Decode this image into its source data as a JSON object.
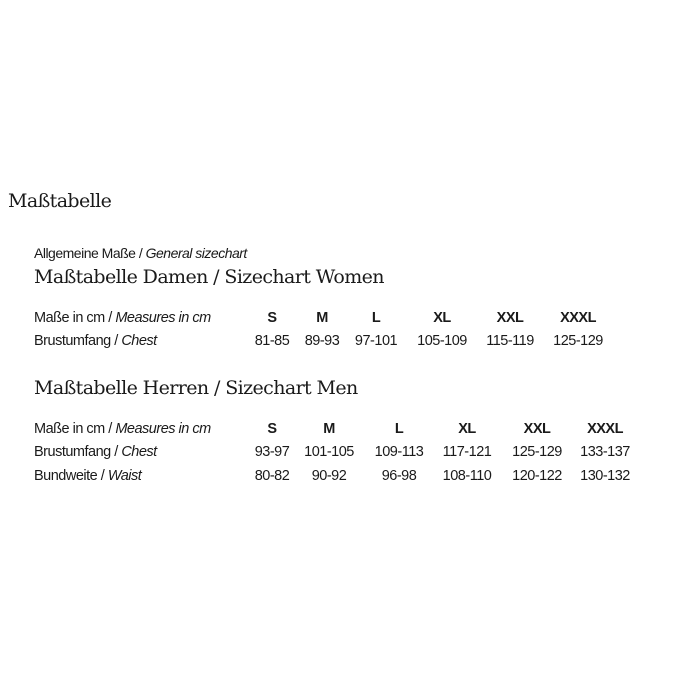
{
  "title": "Maßtabelle",
  "subtitle": {
    "de": "Allgemeine Maße",
    "sep": " / ",
    "en": "General sizechart"
  },
  "tables": [
    {
      "heading": "Maßtabelle Damen / Sizechart Women",
      "header_label": {
        "de": "Maße in cm",
        "en": "Measures in cm"
      },
      "sizes": [
        "S",
        "M",
        "L",
        "XL",
        "XXL",
        "XXXL"
      ],
      "rows": [
        {
          "de": "Brustumfang",
          "en": "Chest",
          "values": [
            "81-85",
            "89-93",
            "97-101",
            "105-109",
            "115-119",
            "125-129"
          ]
        }
      ]
    },
    {
      "heading": "Maßtabelle Herren / Sizechart Men",
      "header_label": {
        "de": "Maße in cm",
        "en": "Measures in cm"
      },
      "sizes": [
        "S",
        "M",
        "L",
        "XL",
        "XXL",
        "XXXL"
      ],
      "rows": [
        {
          "de": "Brustumfang",
          "en": "Chest",
          "values": [
            "93-97",
            "101-105",
            "109-113",
            "117-121",
            "125-129",
            "133-137"
          ]
        },
        {
          "de": "Bundweite",
          "en": "Waist",
          "values": [
            "80-82",
            "90-92",
            "96-98",
            "108-110",
            "120-122",
            "130-132"
          ]
        }
      ]
    }
  ]
}
